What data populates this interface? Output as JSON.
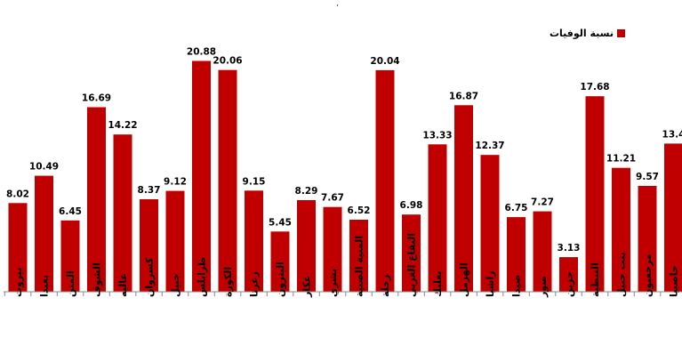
{
  "chart_data": {
    "type": "bar",
    "series": [
      {
        "name": "نسبة الوفيات",
        "values": [
          8.02,
          10.49,
          6.45,
          16.69,
          14.22,
          8.37,
          9.12,
          20.88,
          20.06,
          9.15,
          5.45,
          8.29,
          7.67,
          6.52,
          20.04,
          6.98,
          13.33,
          16.87,
          12.37,
          6.75,
          7.27,
          3.13,
          17.68,
          11.21,
          9.57,
          13.4
        ],
        "value_labels": [
          "8.02",
          "10.49",
          "6.45",
          "16.69",
          "14.22",
          "8.37",
          "9.12",
          "20.88",
          "20.06",
          "9.15",
          "5.45",
          "8.29",
          "7.67",
          "6.52",
          "20.04",
          "6.98",
          "13.33",
          "16.87",
          "12.37",
          "6.75",
          "7.27",
          "3.13",
          "17.68",
          "11.21",
          "9.57",
          "13.4"
        ]
      }
    ],
    "categories": [
      "بيروت",
      "بعبدا",
      "المتن",
      "الشوف",
      "عاليه",
      "كسروان",
      "جبيل",
      "طرابلس",
      "الكورة",
      "زغرتا",
      "البترون",
      "عكار",
      "بشري",
      "المنية الضنية",
      "زحلة",
      "البقاع الغربي",
      "بعلبك",
      "الهرمل",
      "راشيا",
      "صيدا",
      "صور",
      "جزين",
      "النبطية",
      "بنت جبيل",
      "مرجعيون",
      "حاصبيا"
    ],
    "ylim": [
      0,
      22
    ],
    "legend": "top-right",
    "colors": {
      "bar": "#c00000"
    }
  },
  "top_mark": "،"
}
